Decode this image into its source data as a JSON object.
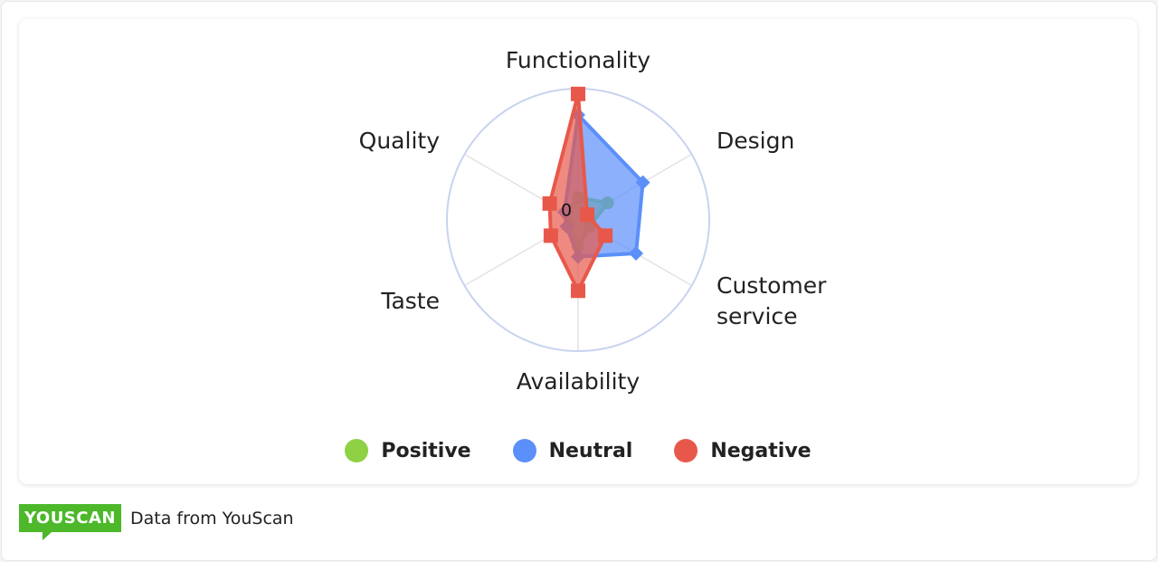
{
  "chart_data": {
    "type": "radar",
    "axes": [
      "Functionality",
      "Design",
      "Customer service",
      "Availability",
      "Taste",
      "Quality"
    ],
    "tick_label": "0",
    "rmax": 100,
    "series": [
      {
        "name": "Positive",
        "color": "#8ed145",
        "marker": "circle",
        "values": [
          17,
          26,
          10,
          20,
          8,
          10
        ]
      },
      {
        "name": "Neutral",
        "color": "#5b8ff9",
        "marker": "diamond",
        "values": [
          80,
          57,
          51,
          28,
          10,
          12
        ]
      },
      {
        "name": "Negative",
        "color": "#e8584a",
        "marker": "square",
        "values": [
          96,
          8,
          24,
          54,
          24,
          25
        ]
      }
    ],
    "legend_position": "bottom"
  },
  "footer": {
    "logo": "YOUSCAN",
    "source": "Data from YouScan"
  }
}
